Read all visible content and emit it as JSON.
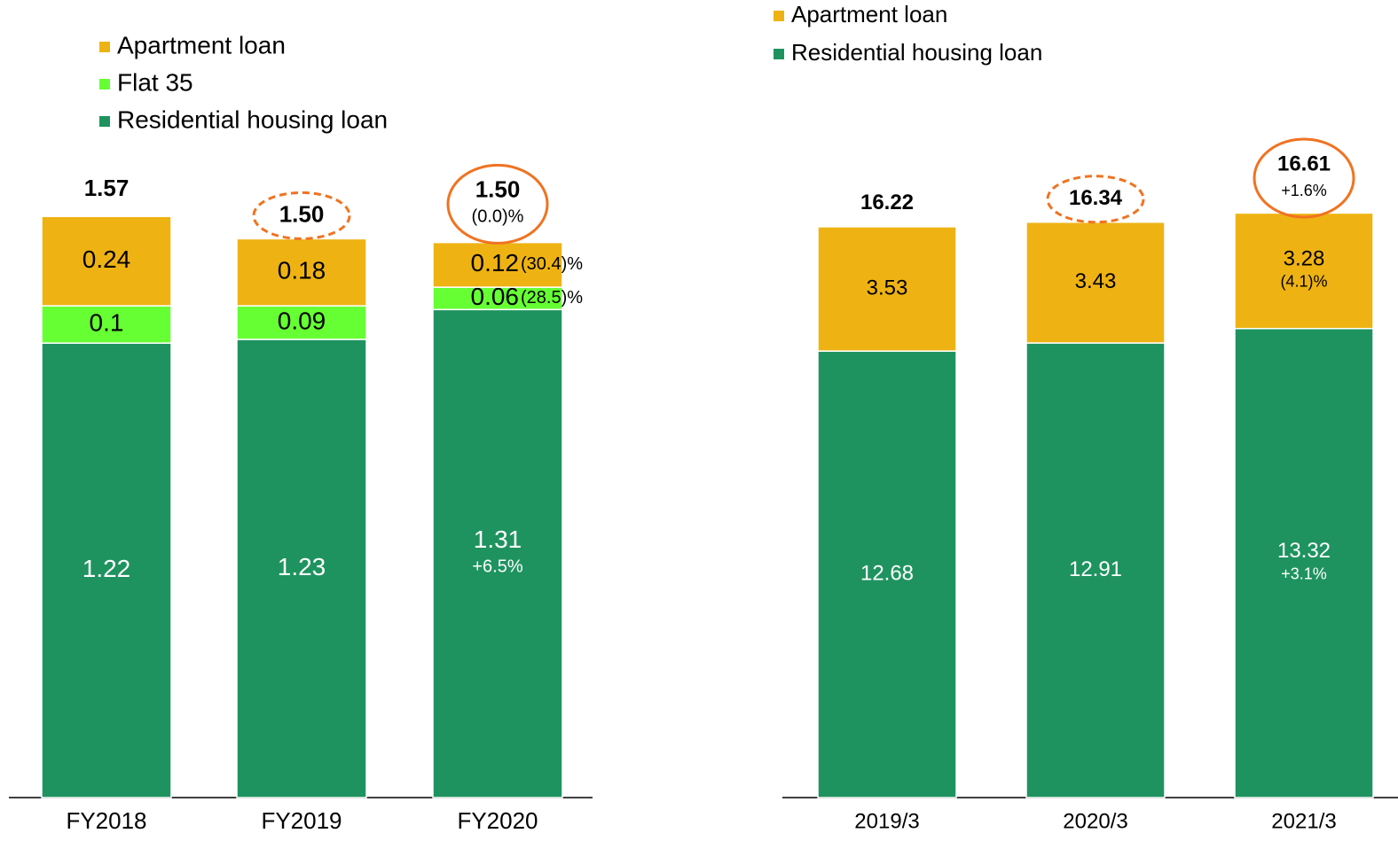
{
  "chart_data": [
    {
      "type": "stacked-bar",
      "categories": [
        "FY2018",
        "FY2019",
        "FY2020"
      ],
      "series": [
        {
          "name": "Residential housing loan",
          "color": "#1f935f",
          "values": [
            1.22,
            1.23,
            1.31
          ],
          "value_notes": [
            null,
            null,
            "+6.5%"
          ],
          "note_position": "below"
        },
        {
          "name": "Flat 35",
          "color": "#66ff33",
          "values": [
            0.1,
            0.09,
            0.06
          ],
          "value_notes": [
            null,
            null,
            "(28.5)%"
          ],
          "note_position": "right"
        },
        {
          "name": "Apartment loan",
          "color": "#eeb313",
          "values": [
            0.24,
            0.18,
            0.12
          ],
          "value_notes": [
            null,
            null,
            "(30.4)%"
          ],
          "note_position": "right"
        }
      ],
      "totals": [
        1.57,
        1.5,
        1.5
      ],
      "value_labels_totals": [
        "1.57",
        "1.50",
        "1.50"
      ],
      "total_notes": [
        null,
        null,
        "(0.0)%"
      ],
      "highlight": [
        null,
        "dashed",
        "solid"
      ]
    },
    {
      "type": "stacked-bar",
      "categories": [
        "2019/3",
        "2020/3",
        "2021/3"
      ],
      "series": [
        {
          "name": "Residential housing loan",
          "color": "#1f935f",
          "values": [
            12.68,
            12.91,
            13.32
          ],
          "value_notes": [
            null,
            null,
            "+3.1%"
          ],
          "note_position": "below"
        },
        {
          "name": "Apartment loan",
          "color": "#eeb313",
          "values": [
            3.53,
            3.43,
            3.28
          ],
          "value_notes": [
            null,
            null,
            "(4.1)%"
          ],
          "note_position": "below"
        }
      ],
      "totals": [
        16.22,
        16.34,
        16.61
      ],
      "total_notes": [
        null,
        null,
        "+1.6%"
      ],
      "highlight": [
        null,
        "dashed",
        "solid"
      ]
    }
  ]
}
